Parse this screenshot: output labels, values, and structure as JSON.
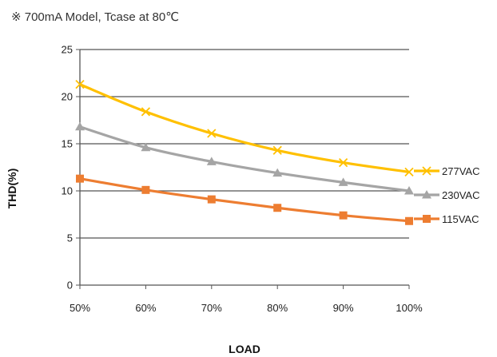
{
  "title": "※ 700mA Model, Tcase at 80℃",
  "chart_data": {
    "type": "line",
    "categories": [
      "50%",
      "60%",
      "70%",
      "80%",
      "90%",
      "100%"
    ],
    "xlabel": "LOAD",
    "ylabel": "THD(%)",
    "ylim": [
      0,
      25
    ],
    "yticks": [
      0,
      5,
      10,
      15,
      20,
      25
    ],
    "grid": true,
    "legend_position": "right",
    "series": [
      {
        "name": "277VAC",
        "color": "#FFC000",
        "marker": "x",
        "values": [
          21.3,
          18.4,
          16.1,
          14.3,
          13.0,
          12.0
        ]
      },
      {
        "name": "230VAC",
        "color": "#A5A5A5",
        "marker": "triangle",
        "values": [
          16.8,
          14.6,
          13.1,
          11.9,
          10.9,
          10.0
        ]
      },
      {
        "name": "115VAC",
        "color": "#ED7D31",
        "marker": "square",
        "values": [
          11.3,
          10.1,
          9.1,
          8.2,
          7.4,
          6.8
        ]
      }
    ]
  }
}
